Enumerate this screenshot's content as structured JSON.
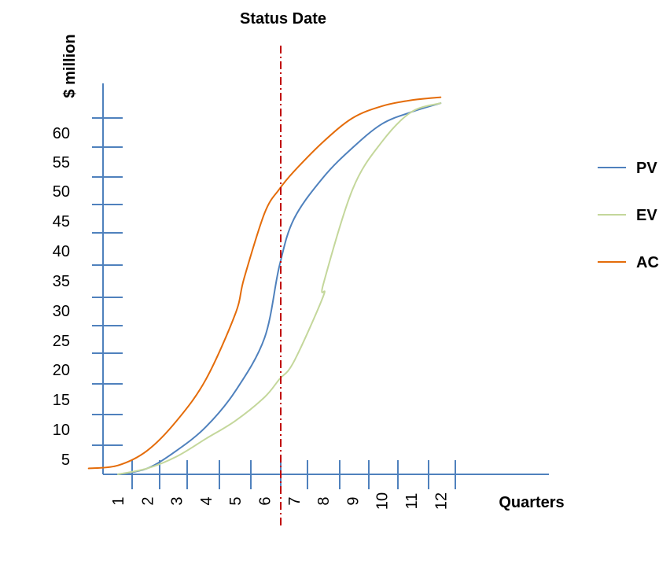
{
  "chart_data": {
    "type": "line",
    "title": "Status Date",
    "xlabel": "Quarters",
    "ylabel": "$ million",
    "x_ticks": [
      "1",
      "2",
      "3",
      "4",
      "5",
      "6",
      "7",
      "8",
      "9",
      "10",
      "11",
      "12"
    ],
    "y_ticks": [
      "5",
      "10",
      "15",
      "20",
      "25",
      "30",
      "35",
      "40",
      "45",
      "50",
      "55",
      "60"
    ],
    "status_date_quarter": 6.5,
    "series": [
      {
        "name": "PV",
        "color": "#4f81bd",
        "points": [
          [
            1,
            0
          ],
          [
            2,
            1
          ],
          [
            3,
            4
          ],
          [
            4,
            8
          ],
          [
            5,
            14
          ],
          [
            6,
            23
          ],
          [
            6.5,
            35
          ],
          [
            7,
            43
          ],
          [
            8,
            50
          ],
          [
            9,
            55
          ],
          [
            10,
            59
          ],
          [
            11,
            61
          ],
          [
            12,
            62.5
          ]
        ]
      },
      {
        "name": "EV",
        "color": "#c4d79b",
        "points": [
          [
            1,
            0
          ],
          [
            2,
            1
          ],
          [
            3,
            3
          ],
          [
            4,
            6
          ],
          [
            5,
            9
          ],
          [
            6,
            13
          ],
          [
            6.5,
            16
          ],
          [
            7,
            19
          ],
          [
            8,
            30
          ],
          [
            8,
            32
          ],
          [
            9,
            48
          ],
          [
            10,
            56
          ],
          [
            11,
            61
          ],
          [
            12,
            62.5
          ]
        ]
      },
      {
        "name": "AC",
        "color": "#e46c0a",
        "points": [
          [
            0,
            1
          ],
          [
            1,
            1.5
          ],
          [
            2,
            4
          ],
          [
            3,
            9
          ],
          [
            4,
            16
          ],
          [
            5,
            27
          ],
          [
            5.3,
            33
          ],
          [
            6,
            44
          ],
          [
            6.5,
            48
          ],
          [
            7,
            51
          ],
          [
            8,
            56
          ],
          [
            9,
            60
          ],
          [
            10,
            62
          ],
          [
            11,
            63
          ],
          [
            12,
            63.5
          ]
        ]
      }
    ],
    "status_line_color": "#c00000"
  }
}
